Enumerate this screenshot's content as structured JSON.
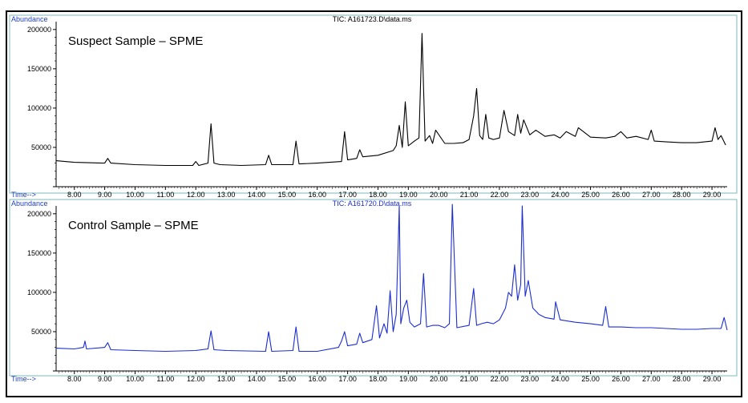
{
  "chart_data": [
    {
      "type": "line",
      "tic_label": "TIC: A161723.D\\data.ms",
      "title": "Suspect Sample – SPME",
      "ylabel": "Abundance",
      "xlabel": "Time-->",
      "color": "#000000",
      "tic_color": "#000000",
      "xlim": [
        7.4,
        29.5
      ],
      "ylim": [
        0,
        210000
      ],
      "x_ticks": [
        "8.00",
        "9.00",
        "10.00",
        "11.00",
        "12.00",
        "13.00",
        "14.00",
        "15.00",
        "16.00",
        "17.00",
        "18.00",
        "19.00",
        "20.00",
        "21.00",
        "22.00",
        "23.00",
        "24.00",
        "25.00",
        "26.00",
        "27.00",
        "28.00",
        "29.00"
      ],
      "y_ticks": [
        "50000",
        "100000",
        "150000",
        "200000"
      ],
      "series": [
        {
          "x": [
            7.4,
            8.0,
            9.0,
            9.1,
            9.2,
            10.0,
            11.0,
            11.9,
            12.0,
            12.1,
            12.4,
            12.5,
            12.6,
            12.8,
            13.5,
            14.3,
            14.4,
            14.5,
            15.2,
            15.3,
            15.4,
            16.0,
            16.8,
            16.9,
            17.0,
            17.3,
            17.4,
            17.5,
            18.0,
            18.5,
            18.6,
            18.7,
            18.8,
            18.9,
            19.0,
            19.2,
            19.35,
            19.45,
            19.55,
            19.7,
            19.8,
            19.9,
            20.2,
            20.5,
            20.8,
            21.0,
            21.15,
            21.25,
            21.35,
            21.45,
            21.55,
            21.65,
            21.8,
            22.0,
            22.15,
            22.3,
            22.5,
            22.6,
            22.7,
            22.8,
            23.0,
            23.2,
            23.5,
            23.8,
            24.0,
            24.2,
            24.5,
            24.6,
            25.0,
            25.5,
            25.8,
            26.0,
            26.2,
            26.5,
            26.9,
            27.0,
            27.1,
            27.5,
            28.0,
            28.5,
            29.0,
            29.1,
            29.2,
            29.3,
            29.45
          ],
          "y": [
            33000,
            31000,
            30000,
            36000,
            30000,
            28000,
            27000,
            27000,
            32000,
            27000,
            30000,
            80000,
            30000,
            28000,
            27000,
            28000,
            40000,
            28000,
            28000,
            58000,
            29000,
            30000,
            32000,
            70000,
            34000,
            36000,
            47000,
            38000,
            40000,
            46000,
            52000,
            78000,
            50000,
            108000,
            52000,
            58000,
            62000,
            195000,
            58000,
            65000,
            55000,
            72000,
            55000,
            55000,
            56000,
            60000,
            90000,
            125000,
            65000,
            60000,
            92000,
            62000,
            60000,
            62000,
            97000,
            70000,
            65000,
            92000,
            68000,
            85000,
            66000,
            72000,
            64000,
            66000,
            62000,
            70000,
            64000,
            75000,
            63000,
            62000,
            64000,
            70000,
            62000,
            64000,
            60000,
            72000,
            58000,
            57000,
            56000,
            56000,
            58000,
            75000,
            60000,
            65000,
            53000
          ]
        }
      ]
    },
    {
      "type": "line",
      "tic_label": "TIC: A161720.D\\data.ms",
      "title": "Control Sample – SPME",
      "ylabel": "Abundance",
      "xlabel": "Time-->",
      "color": "#1c2ed2",
      "tic_color": "#1c2ed2",
      "xlim": [
        7.4,
        29.5
      ],
      "ylim": [
        0,
        210000
      ],
      "x_ticks": [
        "8.00",
        "9.00",
        "10.00",
        "11.00",
        "12.00",
        "13.00",
        "14.00",
        "15.00",
        "16.00",
        "17.00",
        "18.00",
        "19.00",
        "20.00",
        "21.00",
        "22.00",
        "23.00",
        "24.00",
        "25.00",
        "26.00",
        "27.00",
        "28.00",
        "29.00"
      ],
      "y_ticks": [
        "50000",
        "100000",
        "150000",
        "200000"
      ],
      "series": [
        {
          "x": [
            7.4,
            8.0,
            8.3,
            8.35,
            8.4,
            9.0,
            9.1,
            9.2,
            10.0,
            11.0,
            12.0,
            12.4,
            12.5,
            12.6,
            13.0,
            14.3,
            14.4,
            14.5,
            15.2,
            15.3,
            15.4,
            16.0,
            16.7,
            16.8,
            16.9,
            17.0,
            17.3,
            17.4,
            17.5,
            17.8,
            17.95,
            18.05,
            18.2,
            18.3,
            18.4,
            18.5,
            18.6,
            18.7,
            18.75,
            18.85,
            18.95,
            19.05,
            19.2,
            19.4,
            19.5,
            19.6,
            19.8,
            20.0,
            20.2,
            20.35,
            20.45,
            20.6,
            21.0,
            21.15,
            21.25,
            21.4,
            21.6,
            21.8,
            22.0,
            22.2,
            22.3,
            22.4,
            22.5,
            22.6,
            22.7,
            22.75,
            22.85,
            22.95,
            23.1,
            23.3,
            23.5,
            23.8,
            23.85,
            24.0,
            24.5,
            25.0,
            25.4,
            25.5,
            25.6,
            26.0,
            26.5,
            27.0,
            27.5,
            28.0,
            28.5,
            29.0,
            29.3,
            29.4,
            29.5
          ],
          "y": [
            29000,
            28000,
            30000,
            38000,
            28000,
            30000,
            36000,
            27000,
            26000,
            25000,
            26000,
            28000,
            51000,
            27000,
            26000,
            25000,
            50000,
            25000,
            26000,
            56000,
            25000,
            25000,
            30000,
            38000,
            50000,
            32000,
            34000,
            48000,
            36000,
            40000,
            83000,
            42000,
            60000,
            48000,
            102000,
            50000,
            72000,
            210000,
            60000,
            80000,
            90000,
            62000,
            56000,
            60000,
            124000,
            56000,
            58000,
            58000,
            55000,
            60000,
            212000,
            55000,
            58000,
            105000,
            58000,
            60000,
            62000,
            60000,
            65000,
            80000,
            100000,
            95000,
            135000,
            90000,
            110000,
            210000,
            95000,
            115000,
            80000,
            72000,
            68000,
            66000,
            88000,
            65000,
            62000,
            60000,
            58000,
            82000,
            56000,
            56000,
            55000,
            55000,
            54000,
            53000,
            53000,
            54000,
            54000,
            68000,
            52000
          ]
        }
      ]
    }
  ]
}
